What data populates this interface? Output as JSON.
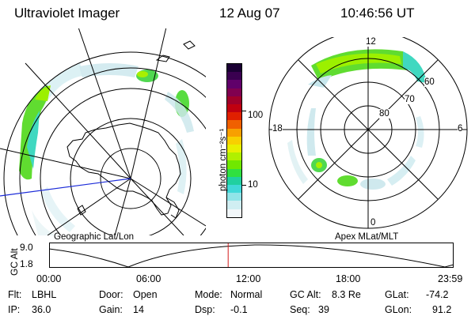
{
  "header": {
    "instrument": "Ultraviolet Imager",
    "date": "12 Aug 07",
    "time": "10:46:56 UT"
  },
  "left_panel": {
    "label": "Geographic Lat/Lon"
  },
  "right_panel": {
    "label": "Apex MLat/MLT",
    "lat_labels": [
      "80",
      "70",
      "60"
    ],
    "mlt_labels": [
      "12",
      "18",
      "6",
      "0"
    ]
  },
  "colorbar": {
    "unit": "photon cm⁻²s⁻¹",
    "tick_labels": [
      "100",
      "10"
    ],
    "colors": [
      "#1a0033",
      "#3a0050",
      "#60006a",
      "#800050",
      "#a0002a",
      "#c00010",
      "#e02000",
      "#f06000",
      "#f8a000",
      "#f8d000",
      "#e8f000",
      "#b0f000",
      "#70e800",
      "#30e040",
      "#20d0a0",
      "#40d8d8",
      "#90e4e8",
      "#d0eef2",
      "#f2f7fa"
    ]
  },
  "altitude_plot": {
    "ylabel": "GC Alt",
    "y_ticks": [
      "9.0",
      "1.8"
    ],
    "x_ticks": [
      "00:00",
      "06:00",
      "12:00",
      "18:00",
      "23:59"
    ],
    "current_time_fraction": 0.4427
  },
  "info": {
    "filter_label": "Flt:",
    "filter_value": "LBHL",
    "ip_label": "IP:",
    "ip_value": "36.0",
    "door_label": "Door:",
    "door_value": "Open",
    "gain_label": "Gain:",
    "gain_value": "14",
    "mode_label": "Mode:",
    "mode_value": "Normal",
    "dsp_label": "Dsp:",
    "dsp_value": "-0.1",
    "gcalt_label": "GC Alt:",
    "gcalt_value": "8.3 Re",
    "seq_label": "Seq:",
    "seq_value": "39",
    "glat_label": "GLat:",
    "glat_value": "-74.2",
    "glon_label": "GLon:",
    "glon_value": "91.2"
  }
}
